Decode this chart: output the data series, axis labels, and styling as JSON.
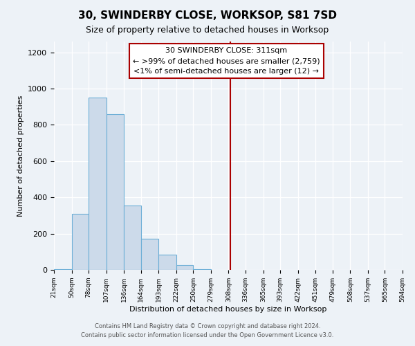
{
  "title": "30, SWINDERBY CLOSE, WORKSOP, S81 7SD",
  "subtitle": "Size of property relative to detached houses in Worksop",
  "xlabel": "Distribution of detached houses by size in Worksop",
  "ylabel": "Number of detached properties",
  "bar_color": "#ccdaea",
  "bar_edge_color": "#6baed6",
  "bin_edges": [
    21,
    50,
    78,
    107,
    136,
    164,
    193,
    222,
    250,
    279,
    308,
    336,
    365,
    393,
    422,
    451,
    479,
    508,
    537,
    565,
    594
  ],
  "bin_heights": [
    5,
    310,
    950,
    860,
    355,
    170,
    85,
    25,
    5,
    0,
    0,
    0,
    0,
    0,
    0,
    0,
    0,
    0,
    0,
    0
  ],
  "marker_x": 311,
  "marker_color": "#aa0000",
  "ylim": [
    0,
    1260
  ],
  "xlim": [
    21,
    594
  ],
  "annotation_title": "30 SWINDERBY CLOSE: 311sqm",
  "annotation_line1": "← >99% of detached houses are smaller (2,759)",
  "annotation_line2": "<1% of semi-detached houses are larger (12) →",
  "footer1": "Contains HM Land Registry data © Crown copyright and database right 2024.",
  "footer2": "Contains public sector information licensed under the Open Government Licence v3.0.",
  "tick_labels": [
    "21sqm",
    "50sqm",
    "78sqm",
    "107sqm",
    "136sqm",
    "164sqm",
    "193sqm",
    "222sqm",
    "250sqm",
    "279sqm",
    "308sqm",
    "336sqm",
    "365sqm",
    "393sqm",
    "422sqm",
    "451sqm",
    "479sqm",
    "508sqm",
    "537sqm",
    "565sqm",
    "594sqm"
  ],
  "background_color": "#edf2f7"
}
